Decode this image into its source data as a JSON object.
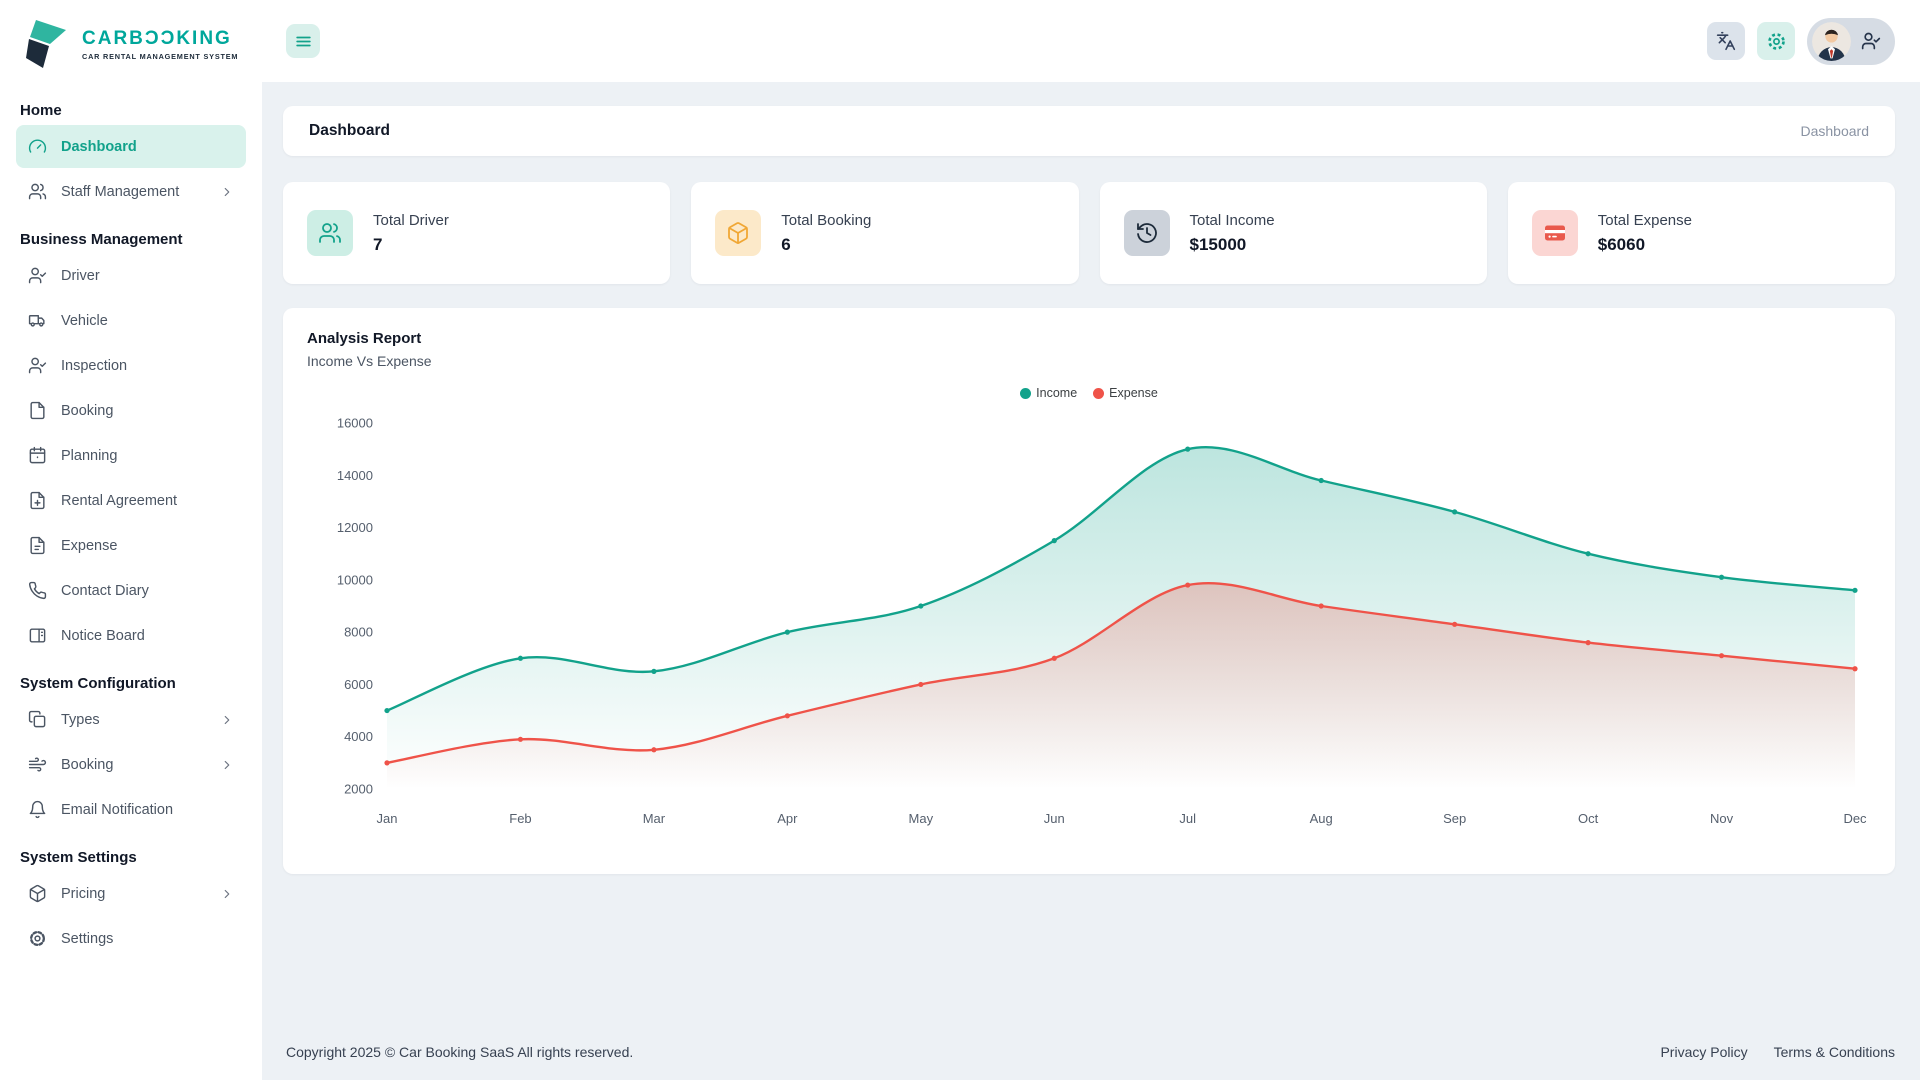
{
  "logo": {
    "title": "CARBƆƆKING",
    "subtitle": "CAR RENTAL MANAGEMENT SYSTEM"
  },
  "colors": {
    "accent_teal": "#12a28b",
    "accent_teal_light": "#d9f2ec",
    "navy": "#1d2b3a",
    "income": "#12a28b",
    "expense": "#ef5349",
    "background": "#edf1f5"
  },
  "topbar": {
    "icons": [
      "menu-icon",
      "translate-icon",
      "gear-icon",
      "avatar",
      "user-check-icon"
    ]
  },
  "sidebar": {
    "sections": [
      {
        "header": "Home",
        "items": [
          {
            "label": "Dashboard",
            "icon": "dashboard-gauge-icon",
            "active": true,
            "chevron": false
          },
          {
            "label": "Staff Management",
            "icon": "users-icon",
            "active": false,
            "chevron": true
          }
        ]
      },
      {
        "header": "Business Management",
        "items": [
          {
            "label": "Driver",
            "icon": "user-check-icon",
            "active": false,
            "chevron": false
          },
          {
            "label": "Vehicle",
            "icon": "truck-icon",
            "active": false,
            "chevron": false
          },
          {
            "label": "Inspection",
            "icon": "user-check-icon",
            "active": false,
            "chevron": false
          },
          {
            "label": "Booking",
            "icon": "file-icon",
            "active": false,
            "chevron": false
          },
          {
            "label": "Planning",
            "icon": "calendar-icon",
            "active": false,
            "chevron": false
          },
          {
            "label": "Rental Agreement",
            "icon": "file-plus-icon",
            "active": false,
            "chevron": false
          },
          {
            "label": "Expense",
            "icon": "file-text-icon",
            "active": false,
            "chevron": false
          },
          {
            "label": "Contact Diary",
            "icon": "phone-icon",
            "active": false,
            "chevron": false
          },
          {
            "label": "Notice Board",
            "icon": "notice-board-icon",
            "active": false,
            "chevron": false
          }
        ]
      },
      {
        "header": "System Configuration",
        "items": [
          {
            "label": "Types",
            "icon": "copy-icon",
            "active": false,
            "chevron": true
          },
          {
            "label": "Booking",
            "icon": "wind-icon",
            "active": false,
            "chevron": true
          },
          {
            "label": "Email Notification",
            "icon": "bell-icon",
            "active": false,
            "chevron": false
          }
        ]
      },
      {
        "header": "System Settings",
        "items": [
          {
            "label": "Pricing",
            "icon": "package-icon",
            "active": false,
            "chevron": true
          },
          {
            "label": "Settings",
            "icon": "gear-icon",
            "active": false,
            "chevron": false
          }
        ]
      }
    ]
  },
  "page_header": {
    "title": "Dashboard",
    "breadcrumb": "Dashboard"
  },
  "stat_cards": [
    {
      "title": "Total Driver",
      "value": "7",
      "icon": "users-icon",
      "icon_bg": "#cdeee5",
      "icon_color": "#12a28b"
    },
    {
      "title": "Total Booking",
      "value": "6",
      "icon": "package-icon",
      "icon_bg": "#fce9c9",
      "icon_color": "#f0a735"
    },
    {
      "title": "Total Income",
      "value": "$15000",
      "icon": "history-clock-icon",
      "icon_bg": "#ccd2da",
      "icon_color": "#1d2b3a"
    },
    {
      "title": "Total Expense",
      "value": "$6060",
      "icon": "credit-card-icon",
      "icon_bg": "#fbd6d3",
      "icon_color": "#e9594c"
    }
  ],
  "analysis": {
    "title": "Analysis Report",
    "subtitle": "Income Vs Expense"
  },
  "chart_data": {
    "type": "area",
    "categories": [
      "Jan",
      "Feb",
      "Mar",
      "Apr",
      "May",
      "Jun",
      "Jul",
      "Aug",
      "Sep",
      "Oct",
      "Nov",
      "Dec"
    ],
    "series": [
      {
        "name": "Income",
        "color": "#12a28b",
        "values": [
          5000,
          7000,
          6500,
          8000,
          9000,
          11500,
          15000,
          13800,
          12600,
          11000,
          10100,
          9600
        ]
      },
      {
        "name": "Expense",
        "color": "#ef5349",
        "values": [
          3000,
          3900,
          3500,
          4800,
          6000,
          7000,
          9800,
          9000,
          8300,
          7600,
          7100,
          6600
        ]
      }
    ],
    "ylim": [
      2000,
      16000
    ],
    "ytick_step": 2000,
    "grid": false,
    "legend_position": "top-center"
  },
  "footer": {
    "copyright": "Copyright 2025 © Car Booking SaaS All rights reserved.",
    "links": [
      "Privacy Policy",
      "Terms & Conditions"
    ]
  }
}
